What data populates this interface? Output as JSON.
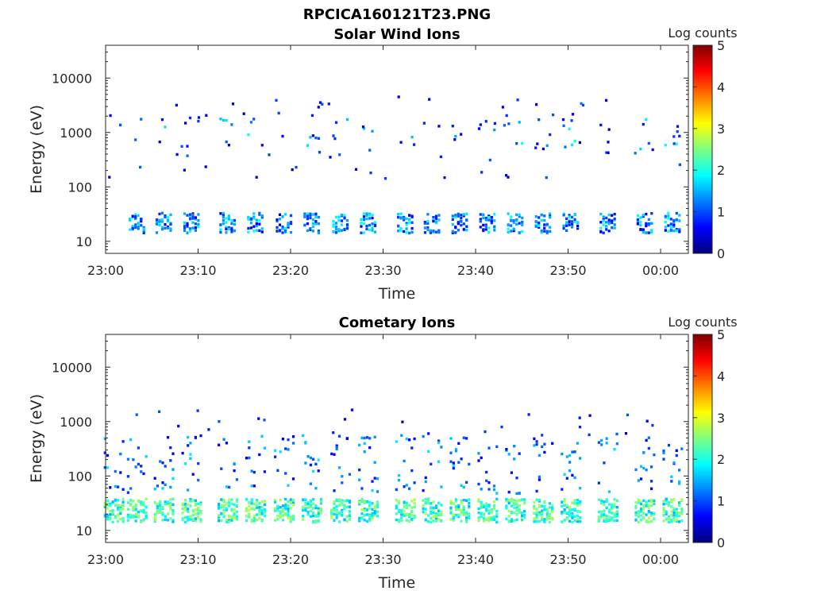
{
  "figure": {
    "suptitle": "RPCICA160121T23.PNG"
  },
  "colors": {
    "colormap": [
      "#00007f",
      "#0000ff",
      "#007fff",
      "#00ffff",
      "#7fff7f",
      "#ffff00",
      "#ff7f00",
      "#ff0000",
      "#7f0000"
    ],
    "axis": "#262626"
  },
  "chart_data": [
    {
      "type": "heatmap",
      "title": "Solar Wind Ions",
      "xlabel": "Time",
      "ylabel": "Energy (eV)",
      "y_scale": "log",
      "xlim": [
        "23:00",
        "00:03"
      ],
      "ylim": [
        6,
        40000
      ],
      "x_ticks": [
        "23:00",
        "23:10",
        "23:20",
        "23:30",
        "23:40",
        "23:50",
        "00:00"
      ],
      "y_ticks": [
        10,
        100,
        1000,
        10000
      ],
      "y_tick_labels": [
        "10",
        "100",
        "1000",
        "10000"
      ],
      "colorbar": {
        "label": "Log counts",
        "range": [
          0,
          5
        ],
        "ticks": [
          "0",
          "1",
          "2",
          "3",
          "4",
          "5"
        ]
      },
      "bursts_minutes_after_2300": [
        3.3,
        6.2,
        9.2,
        13.1,
        16.1,
        19.2,
        22.2,
        25.3,
        28.3,
        32.3,
        35.2,
        38.2,
        41.2,
        44.2,
        47.2,
        50.2,
        54.2,
        58.2,
        61.2
      ],
      "summary": {
        "low_band_eV": [
          15,
          35
        ],
        "low_band_log_counts": [
          0.5,
          2.0
        ],
        "high_band_eV": [
          500,
          2000
        ],
        "high_band_log_counts": [
          0.5,
          2.0
        ],
        "sparse_points_eV": [
          150,
          5000
        ]
      }
    },
    {
      "type": "heatmap",
      "title": "Cometary Ions",
      "xlabel": "Time",
      "ylabel": "Energy (eV)",
      "y_scale": "log",
      "xlim": [
        "23:00",
        "00:03"
      ],
      "ylim": [
        6,
        40000
      ],
      "x_ticks": [
        "23:00",
        "23:10",
        "23:20",
        "23:30",
        "23:40",
        "23:50",
        "00:00"
      ],
      "y_ticks": [
        10,
        100,
        1000,
        10000
      ],
      "y_tick_labels": [
        "10",
        "100",
        "1000",
        "10000"
      ],
      "colorbar": {
        "label": "Log counts",
        "range": [
          0,
          5
        ],
        "ticks": [
          "0",
          "1",
          "2",
          "3",
          "4",
          "5"
        ]
      },
      "bursts_minutes_after_2300": [
        0.8,
        3.3,
        6.2,
        9.2,
        13.1,
        16.1,
        19.2,
        22.2,
        25.3,
        28.3,
        32.3,
        35.2,
        38.2,
        41.2,
        44.2,
        47.2,
        50.2,
        54.2,
        58.2,
        61.2
      ],
      "summary": {
        "core_band_eV": [
          15,
          40
        ],
        "core_band_log_counts": [
          1.5,
          2.8
        ],
        "tail_eV": [
          50,
          600
        ],
        "tail_log_counts": [
          0.5,
          1.8
        ],
        "sparse_points_eV": [
          600,
          1800
        ]
      }
    }
  ]
}
